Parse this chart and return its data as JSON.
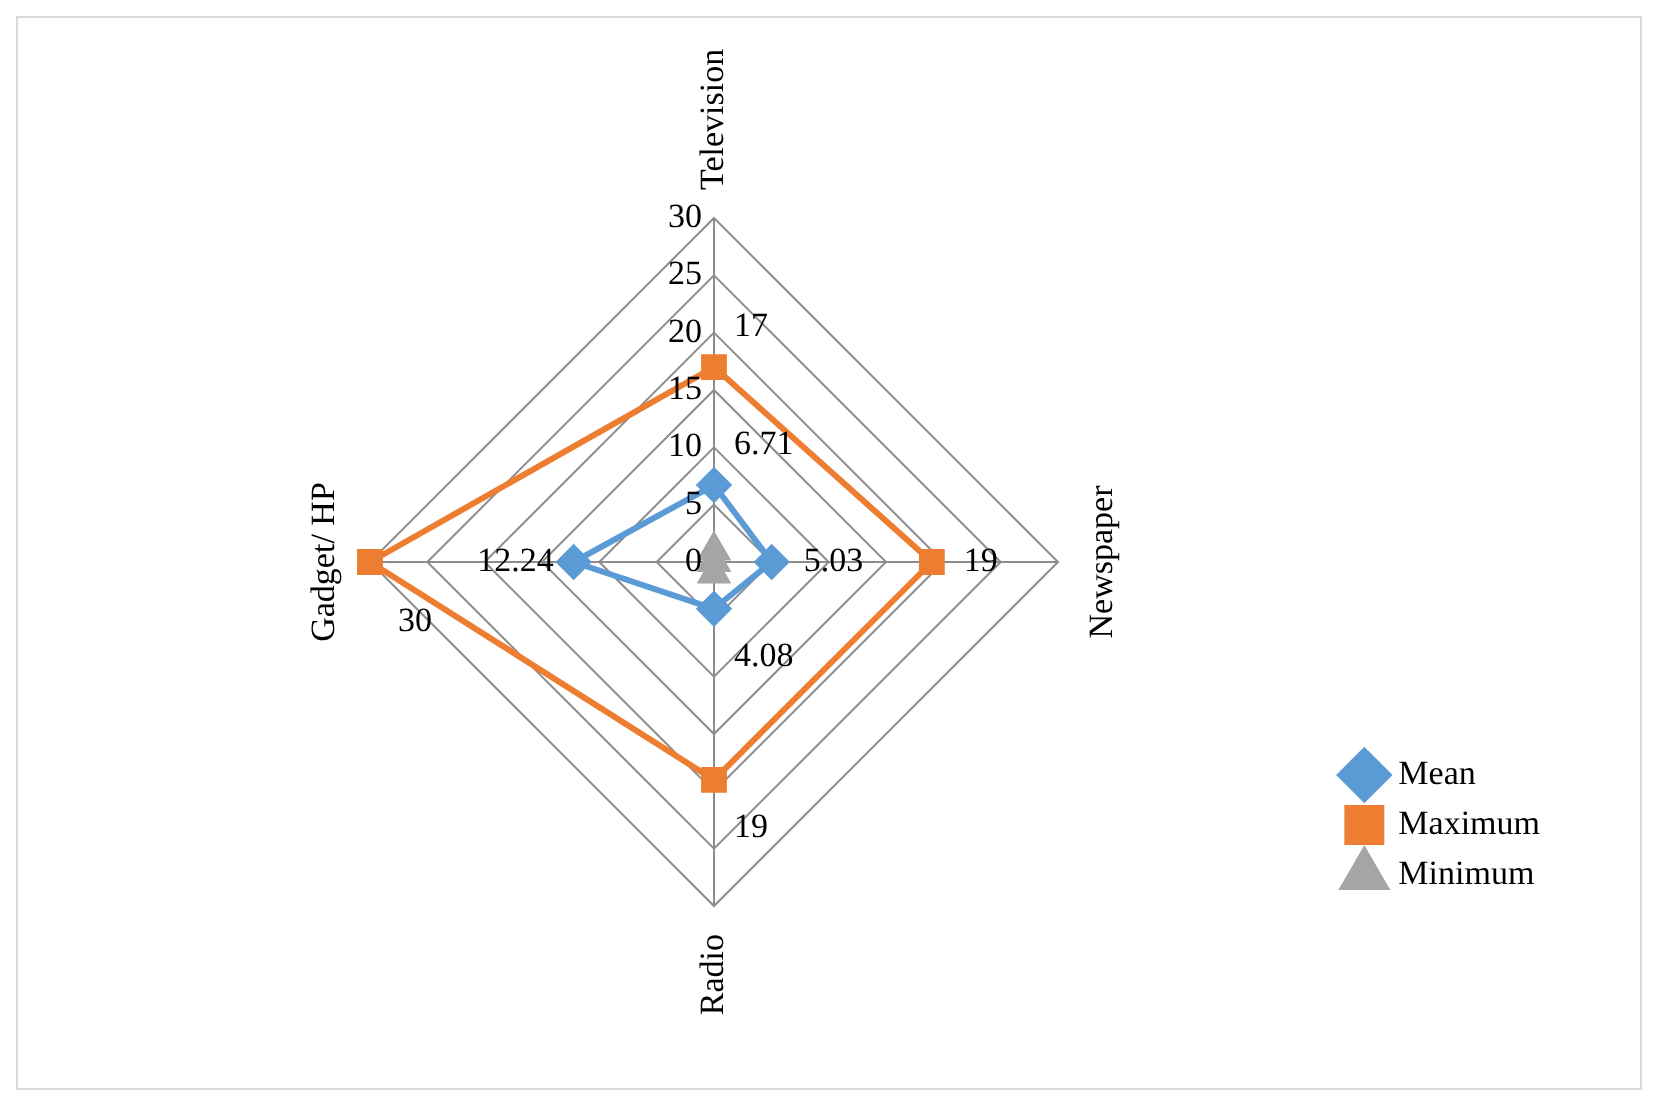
{
  "chart_data": {
    "type": "radar",
    "categories": [
      "Television",
      "Newspaper",
      "Radio",
      "Gadget/ HP"
    ],
    "series": [
      {
        "name": "Mean",
        "color": "#5b9bd5",
        "marker": "diamond",
        "values": [
          6.71,
          5.03,
          4.08,
          12.24
        ],
        "value_labels": [
          "6.71",
          "5.03",
          "4.08",
          "12.24"
        ]
      },
      {
        "name": "Maximum",
        "color": "#ed7d31",
        "marker": "square",
        "values": [
          17,
          19,
          19,
          30
        ],
        "value_labels": [
          "17",
          "19",
          "19",
          "30"
        ]
      },
      {
        "name": "Minimum",
        "color": "#a5a5a5",
        "marker": "triangle",
        "values": [
          1,
          0,
          1,
          0
        ]
      }
    ],
    "ylim": [
      0,
      30
    ],
    "yticks": [
      0,
      5,
      10,
      15,
      20,
      25,
      30
    ],
    "grid": true,
    "legend": "bottom right"
  }
}
